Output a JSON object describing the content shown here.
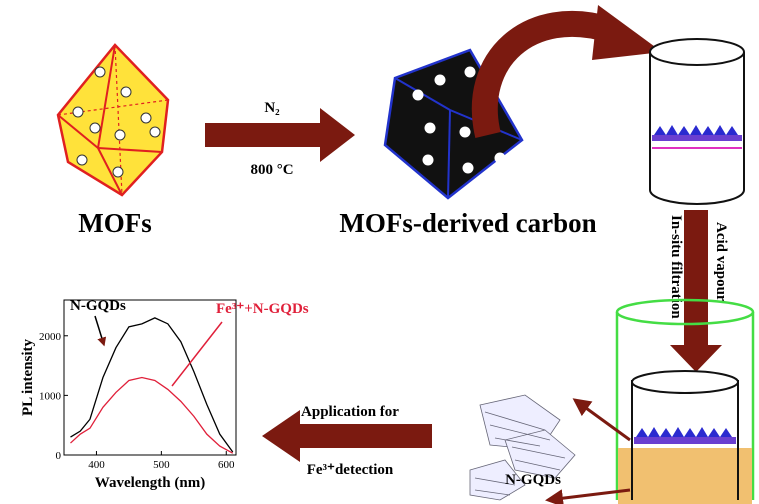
{
  "labels": {
    "mofs": "MOFs",
    "carbon": "MOFs-derived carbon",
    "n2": "N₂",
    "temperature": "800 °C",
    "filtration": "In-situ filtration",
    "acid": "Acid vapour",
    "ngqds": "N-GQDs",
    "application": "Application for",
    "detection": "Fe³⁺detection"
  },
  "inset_chart": {
    "type": "line",
    "xlabel": "Wavelength (nm)",
    "ylabel": "PL intensity",
    "x": [
      360,
      375,
      390,
      410,
      430,
      450,
      470,
      490,
      510,
      530,
      550,
      570,
      590,
      610
    ],
    "series": [
      {
        "name": "N-GQDs",
        "color": "#000000",
        "values": [
          300,
          400,
          600,
          1300,
          1800,
          2150,
          2200,
          2300,
          2200,
          1900,
          1400,
          850,
          350,
          50
        ]
      },
      {
        "name": "Fe³⁺+N-GQDs",
        "color": "#e0203a",
        "values": [
          200,
          350,
          450,
          800,
          1050,
          1250,
          1300,
          1250,
          1100,
          900,
          650,
          350,
          150,
          30
        ]
      }
    ],
    "xlim": [
      350,
      615
    ],
    "ylim": [
      0,
      2600
    ],
    "xticks": [
      400,
      500,
      600
    ],
    "yticks": [
      0,
      1000,
      2000
    ]
  }
}
